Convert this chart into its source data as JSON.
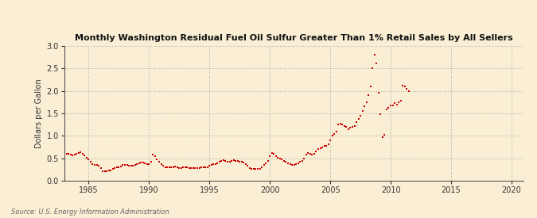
{
  "title": "Monthly Washington Residual Fuel Oil Sulfur Greater Than 1% Retail Sales by All Sellers",
  "ylabel": "Dollars per Gallon",
  "source": "Source: U.S. Energy Information Administration",
  "background_color": "#faefd4",
  "plot_background_color": "#faefd4",
  "line_color": "#cc0000",
  "marker": "s",
  "marker_size": 2.0,
  "xlim": [
    1983,
    2021
  ],
  "ylim": [
    0.0,
    3.0
  ],
  "xticks": [
    1985,
    1990,
    1995,
    2000,
    2005,
    2010,
    2015,
    2020
  ],
  "yticks": [
    0.0,
    0.5,
    1.0,
    1.5,
    2.0,
    2.5,
    3.0
  ],
  "data": [
    [
      1983.17,
      0.6
    ],
    [
      1983.33,
      0.6
    ],
    [
      1983.5,
      0.58
    ],
    [
      1983.67,
      0.57
    ],
    [
      1983.83,
      0.58
    ],
    [
      1984.0,
      0.6
    ],
    [
      1984.17,
      0.62
    ],
    [
      1984.33,
      0.63
    ],
    [
      1984.5,
      0.6
    ],
    [
      1984.67,
      0.57
    ],
    [
      1984.83,
      0.52
    ],
    [
      1985.0,
      0.48
    ],
    [
      1985.17,
      0.43
    ],
    [
      1985.33,
      0.38
    ],
    [
      1985.5,
      0.35
    ],
    [
      1985.67,
      0.35
    ],
    [
      1985.83,
      0.33
    ],
    [
      1986.0,
      0.28
    ],
    [
      1986.17,
      0.22
    ],
    [
      1986.33,
      0.21
    ],
    [
      1986.5,
      0.22
    ],
    [
      1986.67,
      0.23
    ],
    [
      1986.83,
      0.24
    ],
    [
      1987.0,
      0.26
    ],
    [
      1987.17,
      0.28
    ],
    [
      1987.33,
      0.3
    ],
    [
      1987.5,
      0.3
    ],
    [
      1987.67,
      0.32
    ],
    [
      1987.83,
      0.35
    ],
    [
      1988.0,
      0.36
    ],
    [
      1988.17,
      0.35
    ],
    [
      1988.33,
      0.34
    ],
    [
      1988.5,
      0.33
    ],
    [
      1988.67,
      0.34
    ],
    [
      1988.83,
      0.36
    ],
    [
      1989.0,
      0.38
    ],
    [
      1989.17,
      0.4
    ],
    [
      1989.33,
      0.41
    ],
    [
      1989.5,
      0.41
    ],
    [
      1989.67,
      0.4
    ],
    [
      1989.83,
      0.38
    ],
    [
      1990.0,
      0.37
    ],
    [
      1990.17,
      0.43
    ],
    [
      1990.33,
      0.58
    ],
    [
      1990.5,
      0.55
    ],
    [
      1990.67,
      0.48
    ],
    [
      1990.83,
      0.42
    ],
    [
      1991.0,
      0.37
    ],
    [
      1991.17,
      0.33
    ],
    [
      1991.33,
      0.31
    ],
    [
      1991.5,
      0.3
    ],
    [
      1991.67,
      0.3
    ],
    [
      1991.83,
      0.3
    ],
    [
      1992.0,
      0.31
    ],
    [
      1992.17,
      0.32
    ],
    [
      1992.33,
      0.3
    ],
    [
      1992.5,
      0.29
    ],
    [
      1992.67,
      0.29
    ],
    [
      1992.83,
      0.3
    ],
    [
      1993.0,
      0.3
    ],
    [
      1993.17,
      0.3
    ],
    [
      1993.33,
      0.29
    ],
    [
      1993.5,
      0.28
    ],
    [
      1993.67,
      0.28
    ],
    [
      1993.83,
      0.28
    ],
    [
      1994.0,
      0.28
    ],
    [
      1994.17,
      0.29
    ],
    [
      1994.33,
      0.3
    ],
    [
      1994.5,
      0.3
    ],
    [
      1994.67,
      0.3
    ],
    [
      1994.83,
      0.31
    ],
    [
      1995.0,
      0.33
    ],
    [
      1995.17,
      0.35
    ],
    [
      1995.33,
      0.37
    ],
    [
      1995.5,
      0.38
    ],
    [
      1995.67,
      0.4
    ],
    [
      1995.83,
      0.42
    ],
    [
      1996.0,
      0.44
    ],
    [
      1996.17,
      0.46
    ],
    [
      1996.33,
      0.45
    ],
    [
      1996.5,
      0.43
    ],
    [
      1996.67,
      0.43
    ],
    [
      1996.83,
      0.44
    ],
    [
      1997.0,
      0.46
    ],
    [
      1997.17,
      0.45
    ],
    [
      1997.33,
      0.44
    ],
    [
      1997.5,
      0.43
    ],
    [
      1997.67,
      0.42
    ],
    [
      1997.83,
      0.41
    ],
    [
      1998.0,
      0.38
    ],
    [
      1998.17,
      0.33
    ],
    [
      1998.33,
      0.29
    ],
    [
      1998.5,
      0.27
    ],
    [
      1998.67,
      0.26
    ],
    [
      1998.83,
      0.26
    ],
    [
      1999.0,
      0.26
    ],
    [
      1999.17,
      0.27
    ],
    [
      1999.33,
      0.3
    ],
    [
      1999.5,
      0.35
    ],
    [
      1999.67,
      0.4
    ],
    [
      1999.83,
      0.45
    ],
    [
      2000.0,
      0.55
    ],
    [
      2000.17,
      0.62
    ],
    [
      2000.33,
      0.6
    ],
    [
      2000.5,
      0.55
    ],
    [
      2000.67,
      0.52
    ],
    [
      2000.83,
      0.5
    ],
    [
      2001.0,
      0.48
    ],
    [
      2001.17,
      0.45
    ],
    [
      2001.33,
      0.42
    ],
    [
      2001.5,
      0.4
    ],
    [
      2001.67,
      0.38
    ],
    [
      2001.83,
      0.36
    ],
    [
      2002.0,
      0.36
    ],
    [
      2002.17,
      0.38
    ],
    [
      2002.33,
      0.4
    ],
    [
      2002.5,
      0.42
    ],
    [
      2002.67,
      0.45
    ],
    [
      2002.83,
      0.5
    ],
    [
      2003.0,
      0.58
    ],
    [
      2003.17,
      0.62
    ],
    [
      2003.33,
      0.6
    ],
    [
      2003.5,
      0.58
    ],
    [
      2003.67,
      0.6
    ],
    [
      2003.83,
      0.65
    ],
    [
      2004.0,
      0.7
    ],
    [
      2004.17,
      0.72
    ],
    [
      2004.33,
      0.75
    ],
    [
      2004.5,
      0.77
    ],
    [
      2004.67,
      0.78
    ],
    [
      2004.83,
      0.82
    ],
    [
      2005.0,
      0.9
    ],
    [
      2005.17,
      1.0
    ],
    [
      2005.33,
      1.05
    ],
    [
      2005.5,
      1.1
    ],
    [
      2005.67,
      1.25
    ],
    [
      2005.83,
      1.28
    ],
    [
      2006.0,
      1.25
    ],
    [
      2006.17,
      1.22
    ],
    [
      2006.33,
      1.2
    ],
    [
      2006.5,
      1.15
    ],
    [
      2006.67,
      1.18
    ],
    [
      2006.83,
      1.2
    ],
    [
      2007.0,
      1.22
    ],
    [
      2007.17,
      1.3
    ],
    [
      2007.33,
      1.38
    ],
    [
      2007.5,
      1.45
    ],
    [
      2007.67,
      1.55
    ],
    [
      2007.83,
      1.65
    ],
    [
      2008.0,
      1.75
    ],
    [
      2008.17,
      1.9
    ],
    [
      2008.33,
      2.1
    ],
    [
      2008.5,
      2.5
    ],
    [
      2008.67,
      2.8
    ],
    [
      2008.83,
      2.6
    ],
    [
      2009.0,
      1.95
    ],
    [
      2009.17,
      1.48
    ],
    [
      2009.33,
      0.97
    ],
    [
      2009.5,
      1.02
    ],
    [
      2009.67,
      1.58
    ],
    [
      2009.83,
      1.62
    ],
    [
      2010.0,
      1.67
    ],
    [
      2010.17,
      1.68
    ],
    [
      2010.33,
      1.72
    ],
    [
      2010.5,
      1.7
    ],
    [
      2010.67,
      1.75
    ],
    [
      2010.83,
      1.78
    ],
    [
      2011.0,
      2.12
    ],
    [
      2011.17,
      2.1
    ],
    [
      2011.33,
      2.05
    ],
    [
      2011.5,
      2.0
    ]
  ]
}
